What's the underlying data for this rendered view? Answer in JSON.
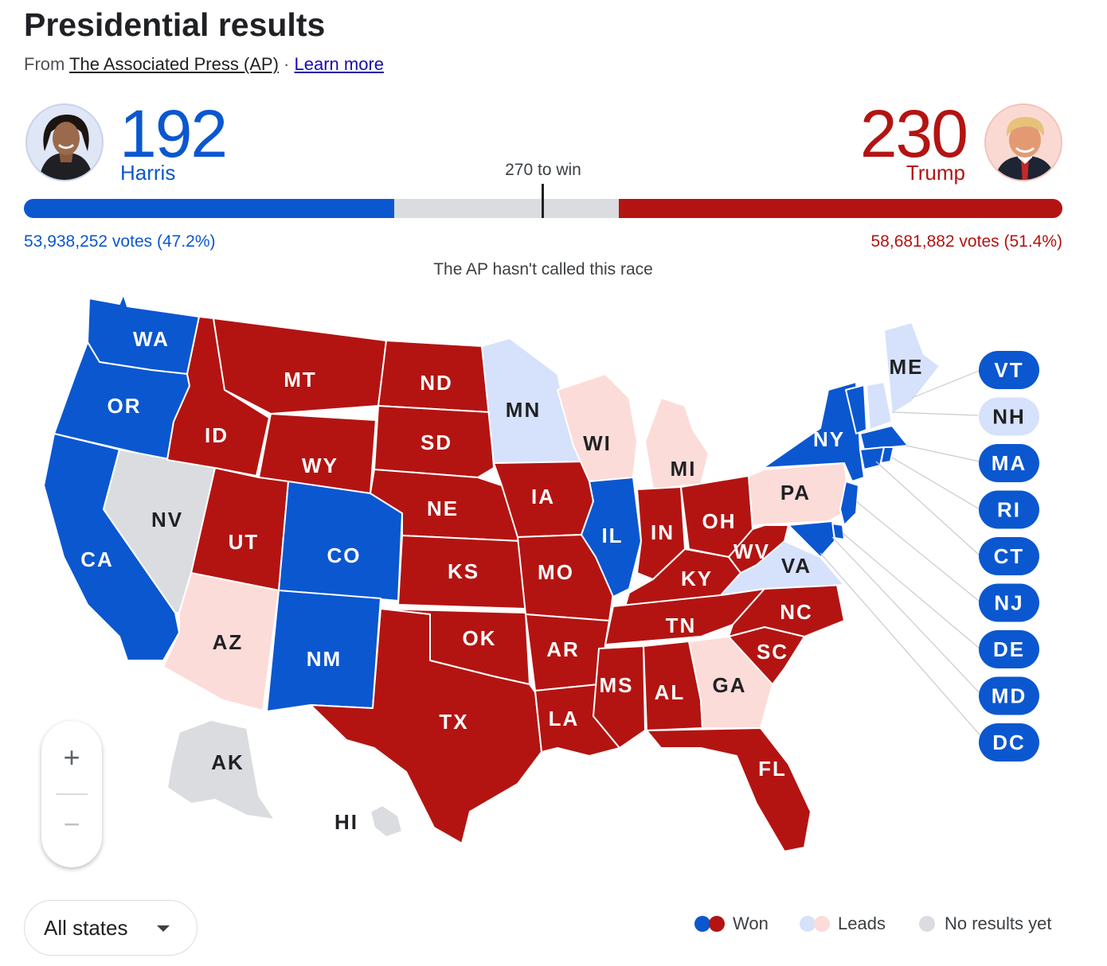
{
  "header": {
    "title": "Presidential results",
    "source_prefix": "From ",
    "source_name": "The Associated Press (AP)",
    "source_sep": " · ",
    "learn_more": "Learn more"
  },
  "scoreboard": {
    "dem": {
      "name": "Harris",
      "electoral_votes": "192",
      "popular_vote": "53,938,252 votes (47.2%)",
      "color": "#0b57d0"
    },
    "rep": {
      "name": "Trump",
      "electoral_votes": "230",
      "popular_vote": "58,681,882 votes (51.4%)",
      "color": "#b31412"
    },
    "threshold_label": "270 to win",
    "total_ev": 538,
    "threshold": 270,
    "status": "The AP hasn't called this race"
  },
  "colors": {
    "dem_won": "#0b57d0",
    "rep_won": "#b31412",
    "dem_leads": "#d6e2fb",
    "rep_leads": "#fcdcd8",
    "no_results": "#dadce0"
  },
  "states": [
    {
      "abbr": "WA",
      "status": "dem_won"
    },
    {
      "abbr": "OR",
      "status": "dem_won"
    },
    {
      "abbr": "CA",
      "status": "dem_won"
    },
    {
      "abbr": "NV",
      "status": "no_results"
    },
    {
      "abbr": "ID",
      "status": "rep_won"
    },
    {
      "abbr": "MT",
      "status": "rep_won"
    },
    {
      "abbr": "WY",
      "status": "rep_won"
    },
    {
      "abbr": "UT",
      "status": "rep_won"
    },
    {
      "abbr": "CO",
      "status": "dem_won"
    },
    {
      "abbr": "AZ",
      "status": "rep_leads"
    },
    {
      "abbr": "NM",
      "status": "dem_won"
    },
    {
      "abbr": "ND",
      "status": "rep_won"
    },
    {
      "abbr": "SD",
      "status": "rep_won"
    },
    {
      "abbr": "NE",
      "status": "rep_won"
    },
    {
      "abbr": "KS",
      "status": "rep_won"
    },
    {
      "abbr": "OK",
      "status": "rep_won"
    },
    {
      "abbr": "TX",
      "status": "rep_won"
    },
    {
      "abbr": "MN",
      "status": "dem_leads"
    },
    {
      "abbr": "IA",
      "status": "rep_won"
    },
    {
      "abbr": "MO",
      "status": "rep_won"
    },
    {
      "abbr": "AR",
      "status": "rep_won"
    },
    {
      "abbr": "LA",
      "status": "rep_won"
    },
    {
      "abbr": "WI",
      "status": "rep_leads"
    },
    {
      "abbr": "IL",
      "status": "dem_won"
    },
    {
      "abbr": "MI",
      "status": "rep_leads"
    },
    {
      "abbr": "IN",
      "status": "rep_won"
    },
    {
      "abbr": "OH",
      "status": "rep_won"
    },
    {
      "abbr": "KY",
      "status": "rep_won"
    },
    {
      "abbr": "TN",
      "status": "rep_won"
    },
    {
      "abbr": "MS",
      "status": "rep_won"
    },
    {
      "abbr": "AL",
      "status": "rep_won"
    },
    {
      "abbr": "GA",
      "status": "rep_leads"
    },
    {
      "abbr": "FL",
      "status": "rep_won"
    },
    {
      "abbr": "SC",
      "status": "rep_won"
    },
    {
      "abbr": "NC",
      "status": "rep_won"
    },
    {
      "abbr": "VA",
      "status": "dem_leads"
    },
    {
      "abbr": "WV",
      "status": "rep_won"
    },
    {
      "abbr": "PA",
      "status": "rep_leads"
    },
    {
      "abbr": "NY",
      "status": "dem_won"
    },
    {
      "abbr": "ME",
      "status": "dem_leads"
    },
    {
      "abbr": "AK",
      "status": "no_results"
    },
    {
      "abbr": "HI",
      "status": "no_results"
    }
  ],
  "small_states": [
    {
      "abbr": "VT",
      "status": "dem_won"
    },
    {
      "abbr": "NH",
      "status": "dem_leads"
    },
    {
      "abbr": "MA",
      "status": "dem_won"
    },
    {
      "abbr": "RI",
      "status": "dem_won"
    },
    {
      "abbr": "CT",
      "status": "dem_won"
    },
    {
      "abbr": "NJ",
      "status": "dem_won"
    },
    {
      "abbr": "DE",
      "status": "dem_won"
    },
    {
      "abbr": "MD",
      "status": "dem_won"
    },
    {
      "abbr": "DC",
      "status": "dem_won"
    }
  ],
  "controls": {
    "zoom_in": "+",
    "zoom_out": "−",
    "filter_selected": "All states"
  },
  "legend": {
    "won": "Won",
    "leads": "Leads",
    "no_results": "No results yet"
  }
}
